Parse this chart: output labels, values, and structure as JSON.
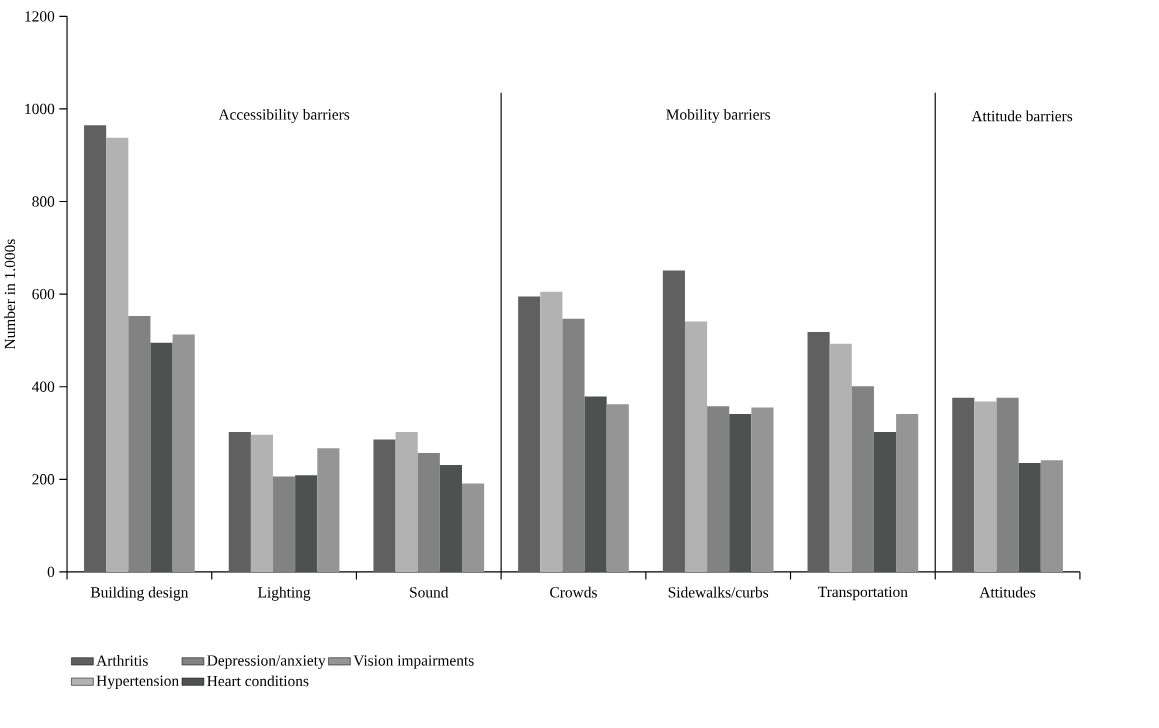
{
  "chart_data": {
    "type": "bar",
    "ylabel": "Number in 1.000s",
    "categories": [
      "Building design",
      "Lighting",
      "Sound",
      "Crowds",
      "Sidewalks/curbs",
      "Transportation",
      "Attitudes"
    ],
    "series": [
      {
        "name": "Arthritis",
        "color": "#606060",
        "values": [
          965,
          302,
          286,
          595,
          651,
          518,
          376
        ]
      },
      {
        "name": "Hypertension",
        "color": "#b2b2b2",
        "values": [
          938,
          296,
          302,
          605,
          541,
          493,
          368
        ]
      },
      {
        "name": "Depression/anxiety",
        "color": "#818281",
        "values": [
          553,
          206,
          257,
          547,
          358,
          401,
          376
        ]
      },
      {
        "name": "Heart conditions",
        "color": "#4f5150",
        "values": [
          495,
          209,
          231,
          379,
          341,
          302,
          235
        ]
      },
      {
        "name": "Vision impairments",
        "color": "#959595",
        "values": [
          513,
          267,
          191,
          362,
          355,
          341,
          241
        ]
      }
    ],
    "annotations": [
      "Accessibility barriers",
      "Mobility barriers",
      "Attitude barriers"
    ],
    "ylim": [
      0,
      1200
    ],
    "yticks": [
      0,
      200,
      400,
      600,
      800,
      1000,
      1200
    ],
    "grid": false,
    "legend": "bottom"
  }
}
